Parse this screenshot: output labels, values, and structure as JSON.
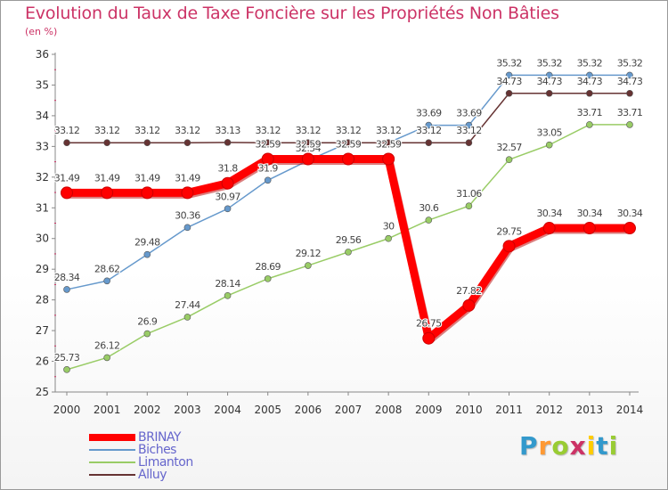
{
  "chart_data": {
    "type": "line",
    "title": "Evolution du Taux de Taxe Foncière sur les Propriétés Non Bâties",
    "ylabel": "(en %)",
    "xlabel": "",
    "ylim": [
      25,
      36
    ],
    "yticks": [
      "25",
      "26",
      "27",
      "28",
      "29",
      "30",
      "31",
      "32",
      "33",
      "34",
      "35",
      "36"
    ],
    "categories": [
      "2000",
      "2001",
      "2002",
      "2003",
      "2004",
      "2005",
      "2006",
      "2007",
      "2008",
      "2009",
      "2010",
      "2011",
      "2012",
      "2013",
      "2014"
    ],
    "series": [
      {
        "name": "BRINAY",
        "color": "#ff0000",
        "values": [
          31.49,
          31.49,
          31.49,
          31.49,
          31.8,
          32.59,
          32.59,
          32.59,
          32.59,
          26.75,
          27.82,
          29.75,
          30.34,
          30.34,
          30.34
        ],
        "labels": [
          "31.49",
          "31.49",
          "31.49",
          "31.49",
          "31.8",
          "32.59",
          "32.59",
          "32.59",
          "32.59",
          "26.75",
          "27.82",
          "29.75",
          "30.34",
          "30.34",
          "30.34"
        ]
      },
      {
        "name": "Biches",
        "color": "#6699cc",
        "values": [
          28.34,
          28.62,
          29.48,
          30.36,
          30.97,
          31.9,
          32.54,
          33.12,
          33.12,
          33.69,
          33.69,
          35.32,
          35.32,
          35.32,
          35.32
        ],
        "labels": [
          "28.34",
          "28.62",
          "29.48",
          "30.36",
          "30.97",
          "31.9",
          "32.54",
          "33.12",
          "33.12",
          "33.69",
          "33.69",
          "35.32",
          "35.32",
          "35.32",
          "35.32"
        ]
      },
      {
        "name": "Limanton",
        "color": "#99cc66",
        "values": [
          25.73,
          26.12,
          26.9,
          27.44,
          28.14,
          28.69,
          29.12,
          29.56,
          30,
          30.6,
          31.06,
          32.57,
          33.05,
          33.71,
          33.71
        ],
        "labels": [
          "25.73",
          "26.12",
          "26.9",
          "27.44",
          "28.14",
          "28.69",
          "29.12",
          "29.56",
          "30",
          "30.6",
          "31.06",
          "32.57",
          "33.05",
          "33.71",
          "33.71"
        ]
      },
      {
        "name": "Alluy",
        "color": "#663333",
        "values": [
          33.12,
          33.12,
          33.12,
          33.12,
          33.13,
          33.12,
          33.12,
          33.12,
          33.12,
          33.12,
          33.12,
          34.73,
          34.73,
          34.73,
          34.73
        ],
        "labels": [
          "33.12",
          "33.12",
          "33.12",
          "33.12",
          "33.13",
          "33.12",
          "33.12",
          "33.12",
          "33.12",
          "33.12",
          "33.12",
          "34.73",
          "34.73",
          "34.73",
          "34.73"
        ]
      }
    ],
    "grid": false,
    "legend_position": "bottom-left"
  },
  "brand": {
    "letters": [
      "P",
      "r",
      "o",
      "x",
      "i",
      "t",
      "i"
    ],
    "colors": [
      "#3399cc",
      "#ff9933",
      "#99cc33",
      "#cc3366",
      "#ffcc00",
      "#3399cc",
      "#99cc33"
    ]
  }
}
